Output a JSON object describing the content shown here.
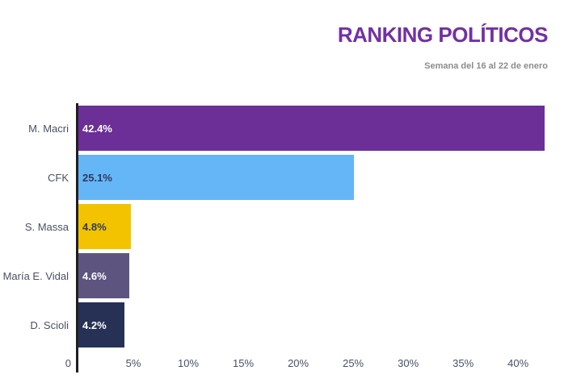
{
  "chart_data": {
    "type": "bar",
    "orientation": "horizontal",
    "title": "RANKING POLÍTICOS",
    "subtitle": "Semana del 16 al 22 de enero",
    "categories": [
      "M. Macri",
      "CFK",
      "S. Massa",
      "María E. Vidal",
      "D. Scioli"
    ],
    "values": [
      42.4,
      25.1,
      4.8,
      4.6,
      4.2
    ],
    "value_labels": [
      "42.4%",
      "25.1%",
      "4.8%",
      "4.6%",
      "4.2%"
    ],
    "bar_colors": [
      "#6b2f97",
      "#64b6f7",
      "#f4c300",
      "#5d5580",
      "#273156"
    ],
    "value_label_colors": [
      "#ffffff",
      "#2f3a5c",
      "#2f3a5c",
      "#ffffff",
      "#ffffff"
    ],
    "x_ticks": [
      {
        "value": 0,
        "label": "0"
      },
      {
        "value": 5,
        "label": "5%"
      },
      {
        "value": 10,
        "label": "10%"
      },
      {
        "value": 15,
        "label": "15%"
      },
      {
        "value": 20,
        "label": "20%"
      },
      {
        "value": 25,
        "label": "25%"
      },
      {
        "value": 30,
        "label": "30%"
      },
      {
        "value": 35,
        "label": "35%"
      },
      {
        "value": 40,
        "label": "40%"
      }
    ],
    "xlim": [
      0,
      43
    ],
    "xlabel": "",
    "ylabel": "",
    "grid": false,
    "legend": false,
    "colors": {
      "title": "#7230a5",
      "subtitle": "#8c8c8c",
      "category_label": "#4a5163",
      "tick_label": "#46506a",
      "axis_line": "#1f1f1f",
      "background": "#ffffff"
    }
  }
}
